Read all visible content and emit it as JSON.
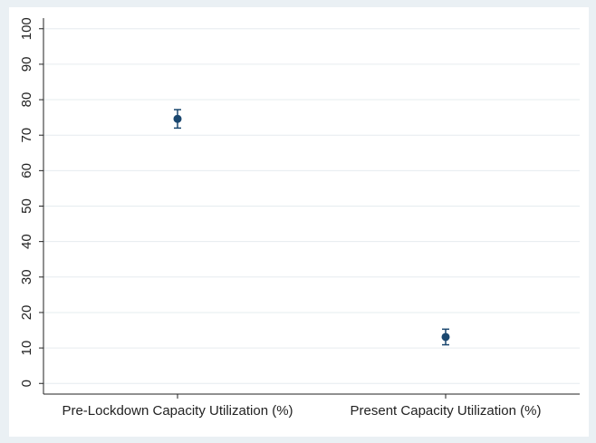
{
  "chart_data": {
    "type": "dot",
    "categories": [
      "Pre-Lockdown Capacity Utilization (%)",
      "Present Capacity Utilization (%)"
    ],
    "values": [
      74.6,
      13.1
    ],
    "errors": [
      2.6,
      2.2
    ],
    "color": "#1a476f",
    "ylim": [
      -3,
      103
    ],
    "yticks": [
      0,
      10,
      20,
      30,
      40,
      50,
      60,
      70,
      80,
      90,
      100
    ],
    "grid": true
  }
}
